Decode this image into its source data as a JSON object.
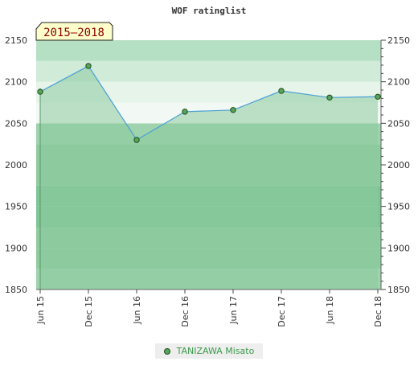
{
  "chart_data": {
    "type": "area",
    "title": "WOF ratinglist",
    "period_label": "2015–2018",
    "categories": [
      "Jun 15",
      "Dec 15",
      "Jun 16",
      "Dec 16",
      "Jun 17",
      "Dec 17",
      "Jun 18",
      "Dec 18"
    ],
    "series": [
      {
        "name": "TANIZAWA Misato",
        "values": [
          2088,
          2119,
          2030,
          2064,
          2066,
          2089,
          2081,
          2082
        ]
      }
    ],
    "ylim": [
      1850,
      2150
    ],
    "yticks": [
      1850,
      1900,
      1950,
      2000,
      2050,
      2100,
      2150
    ],
    "y_axis_both_sides": true,
    "grid": true,
    "legend_position": "bottom-center",
    "colors": {
      "line": "#4a9fd6",
      "marker_fill": "#5aa35a",
      "marker_stroke": "#1d4d1d",
      "area_fill": "#8ccb9e",
      "legend_text": "#3a9a4a"
    }
  }
}
